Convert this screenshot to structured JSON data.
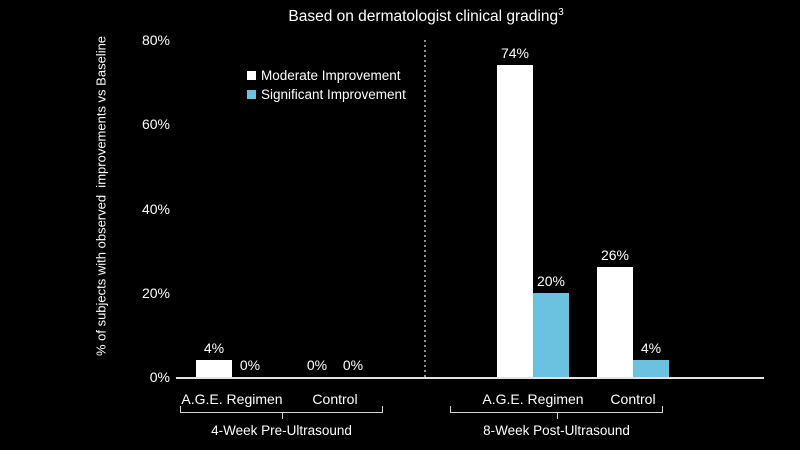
{
  "title": {
    "text": "Based on dermatologist clinical grading",
    "superscript": "3"
  },
  "colors": {
    "background": "#000000",
    "moderate": "#ffffff",
    "significant": "#6bc2e0",
    "axis_line": "#e3e3e3",
    "divider_line": "#8f8f8f",
    "bracket_line": "#d4d4d4",
    "text": "#ffffff"
  },
  "chart_data": {
    "type": "bar",
    "title": "Based on dermatologist clinical grading³",
    "ylabel": "% of subjects with observed  improvements vs Baseline",
    "xlabel": "",
    "ylim": [
      0,
      80
    ],
    "yticks": [
      0,
      20,
      40,
      60,
      80
    ],
    "ytick_labels": [
      "0%",
      "20%",
      "40%",
      "60%",
      "80%"
    ],
    "grid": false,
    "legend_position": "upper left inside plot",
    "series": [
      {
        "name": "Moderate Improvement",
        "color": "#ffffff",
        "values": [
          4,
          0,
          74,
          26
        ]
      },
      {
        "name": "Significant Improvement",
        "color": "#6bc2e0",
        "values": [
          0,
          0,
          20,
          4
        ]
      }
    ],
    "categories": [
      "A.G.E. Regimen",
      "Control",
      "A.G.E. Regimen",
      "Control"
    ],
    "value_labels": [
      [
        "4%",
        "0%"
      ],
      [
        "0%",
        "0%"
      ],
      [
        "74%",
        "20%"
      ],
      [
        "26%",
        "4%"
      ]
    ],
    "groups": [
      {
        "label": "4-Week Pre-Ultrasound",
        "category_indices": [
          0,
          1
        ]
      },
      {
        "label": "8-Week Post-Ultrasound",
        "category_indices": [
          2,
          3
        ]
      }
    ],
    "divider": {
      "style": "dashed vertical line between the two groups"
    }
  }
}
